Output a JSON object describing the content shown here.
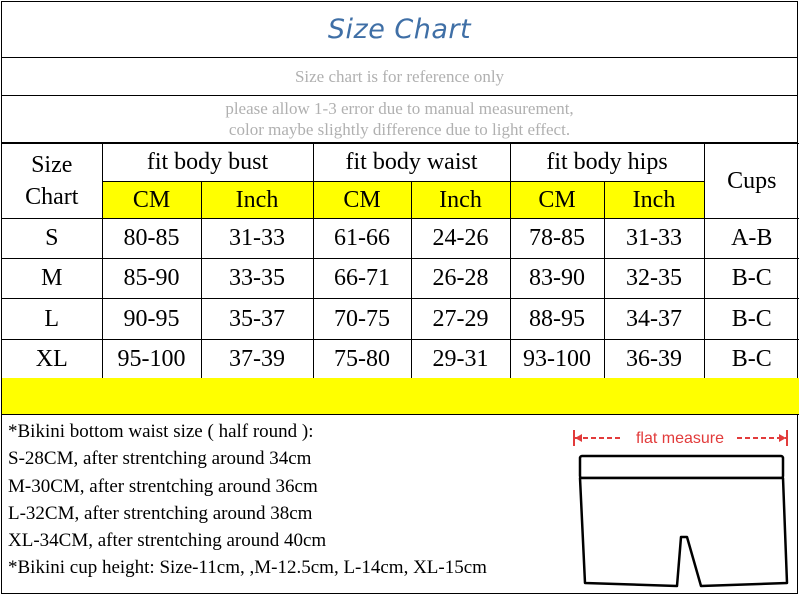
{
  "title": "Size Chart",
  "notes_top": {
    "reference": "Size chart is for reference only",
    "error_line1": "please allow 1-3 error due to manual measurement,",
    "error_line2": "color maybe slightly difference due to light effect."
  },
  "table": {
    "size_header": "Size Chart",
    "groups": [
      "fit body bust",
      "fit body waist",
      "fit body hips"
    ],
    "units": [
      "CM",
      "Inch",
      "CM",
      "Inch",
      "CM",
      "Inch"
    ],
    "cups_header": "Cups",
    "rows": [
      {
        "size": "S",
        "bust_cm": "80-85",
        "bust_in": "31-33",
        "waist_cm": "61-66",
        "waist_in": "24-26",
        "hips_cm": "78-85",
        "hips_in": "31-33",
        "cups": "A-B"
      },
      {
        "size": "M",
        "bust_cm": "85-90",
        "bust_in": "33-35",
        "waist_cm": "66-71",
        "waist_in": "26-28",
        "hips_cm": "83-90",
        "hips_in": "32-35",
        "cups": "B-C"
      },
      {
        "size": "L",
        "bust_cm": "90-95",
        "bust_in": "35-37",
        "waist_cm": "70-75",
        "waist_in": "27-29",
        "hips_cm": "88-95",
        "hips_in": "34-37",
        "cups": "B-C"
      },
      {
        "size": "XL",
        "bust_cm": "95-100",
        "bust_in": "37-39",
        "waist_cm": "75-80",
        "waist_in": "29-31",
        "hips_cm": "93-100",
        "hips_in": "36-39",
        "cups": "B-C"
      }
    ]
  },
  "bottom_notes": [
    "*Bikini bottom waist size ( half round ):",
    "S-28CM, after strentching around 34cm",
    "M-30CM, after strentching around 36cm",
    "L-32CM, after strentching around 38cm",
    "XL-34CM, after strentching  around 40cm",
    "*Bikini cup height: Size-11cm, ,M-12.5cm, L-14cm, XL-15cm"
  ],
  "diagram": {
    "label": "flat measure"
  },
  "colors": {
    "title": "#3f6fa6",
    "highlight": "#ffff00",
    "note_grey": "#b0b0b0",
    "measure_red": "#e23b3b"
  }
}
